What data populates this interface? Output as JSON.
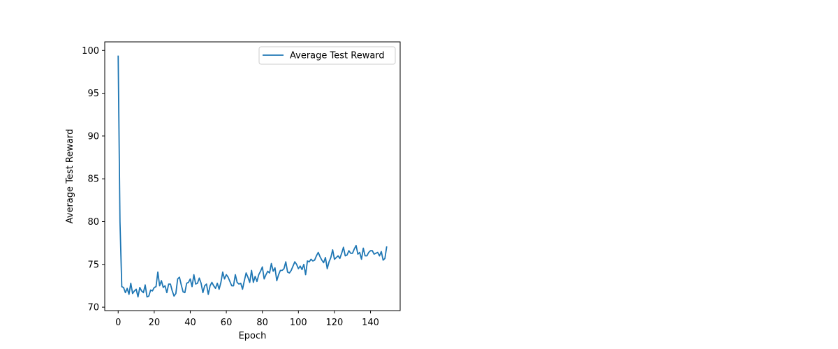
{
  "chart_data": {
    "type": "line",
    "title": "",
    "xlabel": "Epoch",
    "ylabel": "Average Test Reward",
    "xlim": [
      -7.45,
      156.45
    ],
    "ylim": [
      69.6,
      101.0
    ],
    "xticks": [
      0,
      20,
      40,
      60,
      80,
      100,
      120,
      140
    ],
    "xtick_labels": [
      "0",
      "20",
      "40",
      "60",
      "80",
      "100",
      "120",
      "140"
    ],
    "yticks": [
      70,
      75,
      80,
      85,
      90,
      95,
      100
    ],
    "ytick_labels": [
      "70",
      "75",
      "80",
      "85",
      "90",
      "95",
      "100"
    ],
    "grid": false,
    "legend_position": "top-right",
    "color": "#1f77b4",
    "series": [
      {
        "name": "Average Test Reward",
        "x": [
          0,
          1,
          2,
          3,
          4,
          5,
          6,
          7,
          8,
          9,
          10,
          11,
          12,
          13,
          14,
          15,
          16,
          17,
          18,
          19,
          20,
          21,
          22,
          23,
          24,
          25,
          26,
          27,
          28,
          29,
          30,
          31,
          32,
          33,
          34,
          35,
          36,
          37,
          38,
          39,
          40,
          41,
          42,
          43,
          44,
          45,
          46,
          47,
          48,
          49,
          50,
          51,
          52,
          53,
          54,
          55,
          56,
          57,
          58,
          59,
          60,
          61,
          62,
          63,
          64,
          65,
          66,
          67,
          68,
          69,
          70,
          71,
          72,
          73,
          74,
          75,
          76,
          77,
          78,
          79,
          80,
          81,
          82,
          83,
          84,
          85,
          86,
          87,
          88,
          89,
          90,
          91,
          92,
          93,
          94,
          95,
          96,
          97,
          98,
          99,
          100,
          101,
          102,
          103,
          104,
          105,
          106,
          107,
          108,
          109,
          110,
          111,
          112,
          113,
          114,
          115,
          116,
          117,
          118,
          119,
          120,
          121,
          122,
          123,
          124,
          125,
          126,
          127,
          128,
          129,
          130,
          131,
          132,
          133,
          134,
          135,
          136,
          137,
          138,
          139,
          140,
          141,
          142,
          143,
          144,
          145,
          146,
          147,
          148,
          149
        ],
        "values": [
          99.4,
          80.0,
          72.4,
          72.3,
          71.7,
          72.2,
          71.5,
          72.8,
          71.6,
          71.9,
          72.1,
          71.2,
          72.3,
          71.9,
          71.7,
          72.6,
          71.2,
          71.3,
          72.0,
          71.9,
          72.3,
          72.4,
          74.1,
          72.5,
          73.1,
          72.3,
          72.5,
          71.7,
          72.7,
          72.7,
          71.9,
          71.3,
          71.6,
          73.3,
          73.5,
          72.6,
          71.8,
          71.7,
          72.8,
          72.9,
          73.3,
          72.4,
          73.8,
          72.7,
          72.8,
          73.4,
          72.8,
          71.7,
          72.5,
          72.7,
          71.5,
          72.5,
          72.9,
          72.5,
          72.2,
          72.8,
          72.1,
          72.9,
          74.1,
          73.3,
          73.8,
          73.5,
          73.0,
          72.5,
          72.5,
          73.8,
          72.9,
          72.7,
          72.8,
          72.1,
          73.1,
          74.0,
          73.5,
          72.9,
          74.3,
          72.9,
          73.6,
          73.0,
          73.8,
          74.2,
          74.7,
          73.3,
          73.8,
          74.2,
          74.0,
          75.1,
          74.2,
          74.6,
          73.1,
          73.8,
          74.3,
          74.3,
          74.5,
          75.3,
          74.1,
          74.0,
          74.3,
          74.8,
          75.3,
          75.0,
          74.5,
          74.8,
          74.4,
          75.0,
          73.8,
          75.4,
          75.3,
          75.6,
          75.4,
          75.5,
          76.0,
          76.4,
          75.9,
          75.5,
          75.2,
          75.8,
          74.5,
          75.3,
          75.8,
          76.7,
          75.6,
          75.8,
          76.0,
          75.7,
          76.3,
          77.0,
          76.0,
          76.1,
          76.6,
          76.3,
          76.3,
          76.8,
          77.2,
          76.2,
          76.4,
          75.6,
          76.9,
          76.0,
          76.0,
          76.4,
          76.6,
          76.6,
          76.2,
          76.3,
          76.4,
          76.0,
          76.5,
          75.5,
          75.7,
          77.1
        ]
      }
    ]
  }
}
